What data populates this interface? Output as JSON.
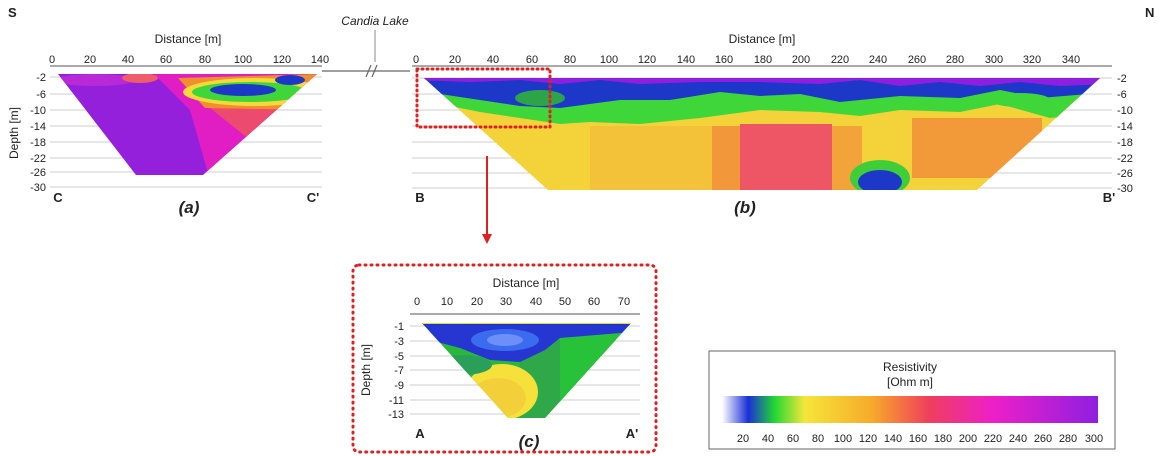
{
  "corners": {
    "south": "S",
    "north": "N"
  },
  "lake_label": "Candia Lake",
  "panels": {
    "a": {
      "label": "(a)",
      "start": "C",
      "end": "C'",
      "x_title": "Distance [m]",
      "y_title": "Depth [m]",
      "x_ticks": [
        "0",
        "20",
        "40",
        "60",
        "80",
        "100",
        "120",
        "140"
      ],
      "y_ticks": [
        "-2",
        "-6",
        "-10",
        "-14",
        "-18",
        "-22",
        "-26",
        "-30"
      ]
    },
    "b": {
      "label": "(b)",
      "start": "B",
      "end": "B'",
      "x_title": "Distance [m]",
      "x_ticks": [
        "0",
        "20",
        "40",
        "60",
        "80",
        "100",
        "120",
        "140",
        "160",
        "180",
        "200",
        "220",
        "240",
        "260",
        "280",
        "300",
        "320",
        "340"
      ],
      "y_ticks": [
        "-2",
        "-6",
        "-10",
        "-14",
        "-18",
        "-22",
        "-26",
        "-30"
      ]
    },
    "c": {
      "label": "(c)",
      "start": "A",
      "end": "A'",
      "x_title": "Distance [m]",
      "y_title": "Depth [m]",
      "x_ticks": [
        "0",
        "10",
        "20",
        "30",
        "40",
        "50",
        "60",
        "70"
      ],
      "y_ticks": [
        "-1",
        "-3",
        "-5",
        "-7",
        "-9",
        "-11",
        "-13"
      ]
    }
  },
  "colorbar": {
    "title_line1": "Resistivity",
    "title_line2": "[Ohm m]",
    "ticks": [
      "20",
      "40",
      "60",
      "80",
      "100",
      "120",
      "140",
      "160",
      "180",
      "200",
      "220",
      "240",
      "260",
      "280",
      "300"
    ],
    "colors": [
      "#ffffff",
      "#1a2fd6",
      "#22d832",
      "#f5e63a",
      "#f7a92a",
      "#ef3f5c",
      "#ee1fc8",
      "#8f1fe0"
    ]
  }
}
